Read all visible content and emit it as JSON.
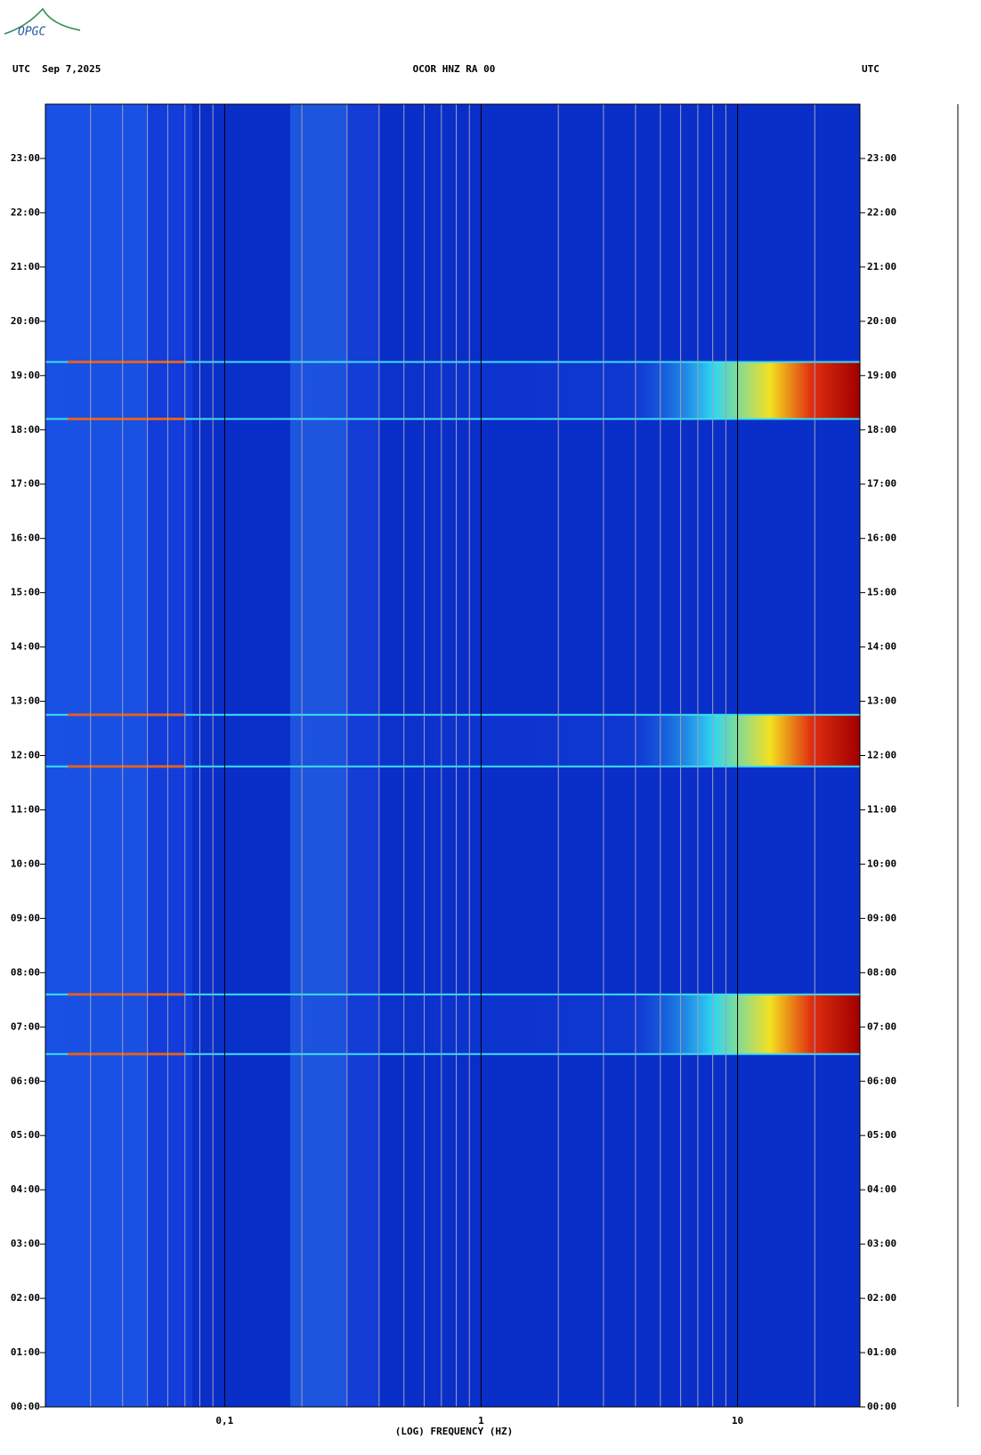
{
  "logo": "OPGC",
  "chart_data": {
    "type": "spectrogram",
    "title": "OCOR HNZ RA 00",
    "header_left": "UTC  Sep 7,2025",
    "header_right": "UTC",
    "x_label": "(LOG) FREQUENCY (HZ)",
    "xlim": [
      0.02,
      30
    ],
    "xscale": "log",
    "xticks": [
      {
        "value": 0.1,
        "label": "0,1"
      },
      1,
      10
    ],
    "xgrid": [
      0.03,
      0.04,
      0.05,
      0.06,
      0.07,
      0.08,
      0.09,
      0.2,
      0.3,
      0.4,
      0.5,
      0.6,
      0.7,
      0.8,
      0.9,
      2,
      3,
      4,
      5,
      6,
      7,
      8,
      9,
      20
    ],
    "ylim": [
      0,
      24
    ],
    "yticks": [
      {
        "value": 0,
        "label": "00:00"
      },
      {
        "value": 1,
        "label": "01:00"
      },
      {
        "value": 2,
        "label": "02:00"
      },
      {
        "value": 3,
        "label": "03:00"
      },
      {
        "value": 4,
        "label": "04:00"
      },
      {
        "value": 5,
        "label": "05:00"
      },
      {
        "value": 6,
        "label": "06:00"
      },
      {
        "value": 7,
        "label": "07:00"
      },
      {
        "value": 8,
        "label": "08:00"
      },
      {
        "value": 9,
        "label": "09:00"
      },
      {
        "value": 10,
        "label": "10:00"
      },
      {
        "value": 11,
        "label": "11:00"
      },
      {
        "value": 12,
        "label": "12:00"
      },
      {
        "value": 13,
        "label": "13:00"
      },
      {
        "value": 14,
        "label": "14:00"
      },
      {
        "value": 15,
        "label": "15:00"
      },
      {
        "value": 16,
        "label": "16:00"
      },
      {
        "value": 17,
        "label": "17:00"
      },
      {
        "value": 18,
        "label": "18:00"
      },
      {
        "value": 19,
        "label": "19:00"
      },
      {
        "value": 20,
        "label": "20:00"
      },
      {
        "value": 21,
        "label": "21:00"
      },
      {
        "value": 22,
        "label": "22:00"
      },
      {
        "value": 23,
        "label": "23:00"
      }
    ],
    "bursts": [
      [
        6.5,
        7.6
      ],
      [
        11.8,
        12.75
      ],
      [
        18.2,
        19.25
      ]
    ]
  }
}
